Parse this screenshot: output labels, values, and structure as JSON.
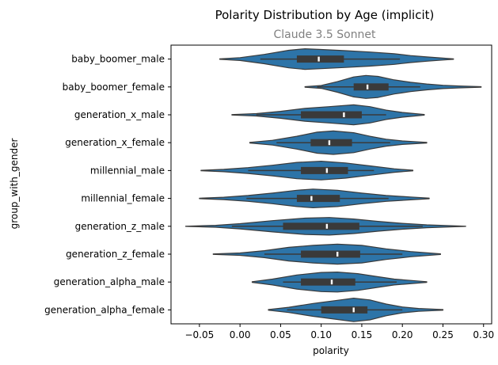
{
  "chart_data": {
    "type": "violin",
    "orientation": "horizontal",
    "title": "Polarity Distribution by Age (implicit)",
    "subtitle": "Claude 3.5 Sonnet",
    "xlabel": "polarity",
    "ylabel": "group_with_gender",
    "xlim": [
      -0.085,
      0.31
    ],
    "xticks": [
      -0.05,
      0.0,
      0.05,
      0.1,
      0.15,
      0.2,
      0.25,
      0.3
    ],
    "xtick_labels": [
      "−0.05",
      "0.00",
      "0.05",
      "0.10",
      "0.15",
      "0.20",
      "0.25",
      "0.30"
    ],
    "fill_color": "#2d74a8",
    "edge_color": "#3a3a3a",
    "categories": [
      "baby_boomer_male",
      "baby_boomer_female",
      "generation_x_male",
      "generation_x_female",
      "millennial_male",
      "millennial_female",
      "generation_z_male",
      "generation_z_female",
      "generation_alpha_male",
      "generation_alpha_female"
    ],
    "series": [
      {
        "min": -0.025,
        "max": 0.263,
        "whisker_low": 0.025,
        "whisker_high": 0.197,
        "q1": 0.07,
        "median": 0.097,
        "q3": 0.128,
        "density": [
          [
            -0.025,
            0.02
          ],
          [
            0.0,
            0.12
          ],
          [
            0.03,
            0.4
          ],
          [
            0.06,
            0.75
          ],
          [
            0.08,
            0.88
          ],
          [
            0.1,
            0.82
          ],
          [
            0.13,
            0.72
          ],
          [
            0.16,
            0.6
          ],
          [
            0.19,
            0.45
          ],
          [
            0.21,
            0.3
          ],
          [
            0.23,
            0.18
          ],
          [
            0.25,
            0.08
          ],
          [
            0.263,
            0.02
          ]
        ]
      },
      {
        "min": 0.08,
        "max": 0.297,
        "whisker_low": 0.095,
        "whisker_high": 0.222,
        "q1": 0.14,
        "median": 0.157,
        "q3": 0.183,
        "density": [
          [
            0.08,
            0.02
          ],
          [
            0.1,
            0.12
          ],
          [
            0.12,
            0.45
          ],
          [
            0.14,
            0.85
          ],
          [
            0.155,
            0.98
          ],
          [
            0.17,
            0.9
          ],
          [
            0.19,
            0.6
          ],
          [
            0.21,
            0.4
          ],
          [
            0.23,
            0.25
          ],
          [
            0.25,
            0.14
          ],
          [
            0.27,
            0.08
          ],
          [
            0.297,
            0.02
          ]
        ]
      },
      {
        "min": -0.01,
        "max": 0.227,
        "whisker_low": 0.02,
        "whisker_high": 0.18,
        "q1": 0.075,
        "median": 0.128,
        "q3": 0.15,
        "density": [
          [
            -0.01,
            0.02
          ],
          [
            0.02,
            0.1
          ],
          [
            0.05,
            0.3
          ],
          [
            0.08,
            0.55
          ],
          [
            0.11,
            0.7
          ],
          [
            0.14,
            0.85
          ],
          [
            0.16,
            0.7
          ],
          [
            0.18,
            0.4
          ],
          [
            0.2,
            0.2
          ],
          [
            0.227,
            0.03
          ]
        ]
      },
      {
        "min": 0.012,
        "max": 0.23,
        "whisker_low": 0.045,
        "whisker_high": 0.185,
        "q1": 0.087,
        "median": 0.11,
        "q3": 0.138,
        "density": [
          [
            0.012,
            0.03
          ],
          [
            0.04,
            0.2
          ],
          [
            0.07,
            0.55
          ],
          [
            0.095,
            0.9
          ],
          [
            0.115,
            1.0
          ],
          [
            0.14,
            0.85
          ],
          [
            0.16,
            0.55
          ],
          [
            0.18,
            0.3
          ],
          [
            0.2,
            0.15
          ],
          [
            0.23,
            0.03
          ]
        ]
      },
      {
        "min": -0.048,
        "max": 0.213,
        "whisker_low": 0.01,
        "whisker_high": 0.165,
        "q1": 0.075,
        "median": 0.107,
        "q3": 0.133,
        "density": [
          [
            -0.048,
            0.02
          ],
          [
            -0.02,
            0.1
          ],
          [
            0.01,
            0.25
          ],
          [
            0.04,
            0.45
          ],
          [
            0.07,
            0.7
          ],
          [
            0.1,
            0.8
          ],
          [
            0.13,
            0.65
          ],
          [
            0.16,
            0.4
          ],
          [
            0.19,
            0.15
          ],
          [
            0.213,
            0.03
          ]
        ]
      },
      {
        "min": -0.05,
        "max": 0.233,
        "whisker_low": 0.008,
        "whisker_high": 0.183,
        "q1": 0.07,
        "median": 0.088,
        "q3": 0.123,
        "density": [
          [
            -0.05,
            0.02
          ],
          [
            -0.02,
            0.1
          ],
          [
            0.01,
            0.25
          ],
          [
            0.04,
            0.45
          ],
          [
            0.07,
            0.7
          ],
          [
            0.09,
            0.8
          ],
          [
            0.12,
            0.7
          ],
          [
            0.15,
            0.45
          ],
          [
            0.18,
            0.25
          ],
          [
            0.21,
            0.12
          ],
          [
            0.233,
            0.03
          ]
        ]
      },
      {
        "min": -0.067,
        "max": 0.278,
        "whisker_low": -0.01,
        "whisker_high": 0.225,
        "q1": 0.053,
        "median": 0.107,
        "q3": 0.147,
        "density": [
          [
            -0.067,
            0.01
          ],
          [
            -0.03,
            0.08
          ],
          [
            0.0,
            0.22
          ],
          [
            0.04,
            0.48
          ],
          [
            0.08,
            0.7
          ],
          [
            0.11,
            0.75
          ],
          [
            0.14,
            0.62
          ],
          [
            0.17,
            0.42
          ],
          [
            0.2,
            0.25
          ],
          [
            0.23,
            0.12
          ],
          [
            0.278,
            0.01
          ]
        ]
      },
      {
        "min": -0.033,
        "max": 0.247,
        "whisker_low": 0.03,
        "whisker_high": 0.2,
        "q1": 0.075,
        "median": 0.12,
        "q3": 0.148,
        "density": [
          [
            -0.033,
            0.02
          ],
          [
            0.0,
            0.1
          ],
          [
            0.03,
            0.3
          ],
          [
            0.06,
            0.58
          ],
          [
            0.09,
            0.75
          ],
          [
            0.12,
            0.85
          ],
          [
            0.15,
            0.75
          ],
          [
            0.18,
            0.45
          ],
          [
            0.21,
            0.22
          ],
          [
            0.247,
            0.03
          ]
        ]
      },
      {
        "min": 0.015,
        "max": 0.23,
        "whisker_low": 0.053,
        "whisker_high": 0.193,
        "q1": 0.075,
        "median": 0.113,
        "q3": 0.142,
        "density": [
          [
            0.015,
            0.03
          ],
          [
            0.04,
            0.25
          ],
          [
            0.07,
            0.6
          ],
          [
            0.1,
            0.82
          ],
          [
            0.12,
            0.85
          ],
          [
            0.145,
            0.72
          ],
          [
            0.17,
            0.45
          ],
          [
            0.19,
            0.25
          ],
          [
            0.23,
            0.03
          ]
        ]
      },
      {
        "min": 0.035,
        "max": 0.25,
        "whisker_low": 0.058,
        "whisker_high": 0.2,
        "q1": 0.1,
        "median": 0.14,
        "q3": 0.157,
        "density": [
          [
            0.035,
            0.03
          ],
          [
            0.06,
            0.22
          ],
          [
            0.09,
            0.55
          ],
          [
            0.12,
            0.82
          ],
          [
            0.14,
            1.0
          ],
          [
            0.16,
            0.85
          ],
          [
            0.18,
            0.5
          ],
          [
            0.2,
            0.25
          ],
          [
            0.22,
            0.12
          ],
          [
            0.25,
            0.03
          ]
        ]
      }
    ]
  }
}
